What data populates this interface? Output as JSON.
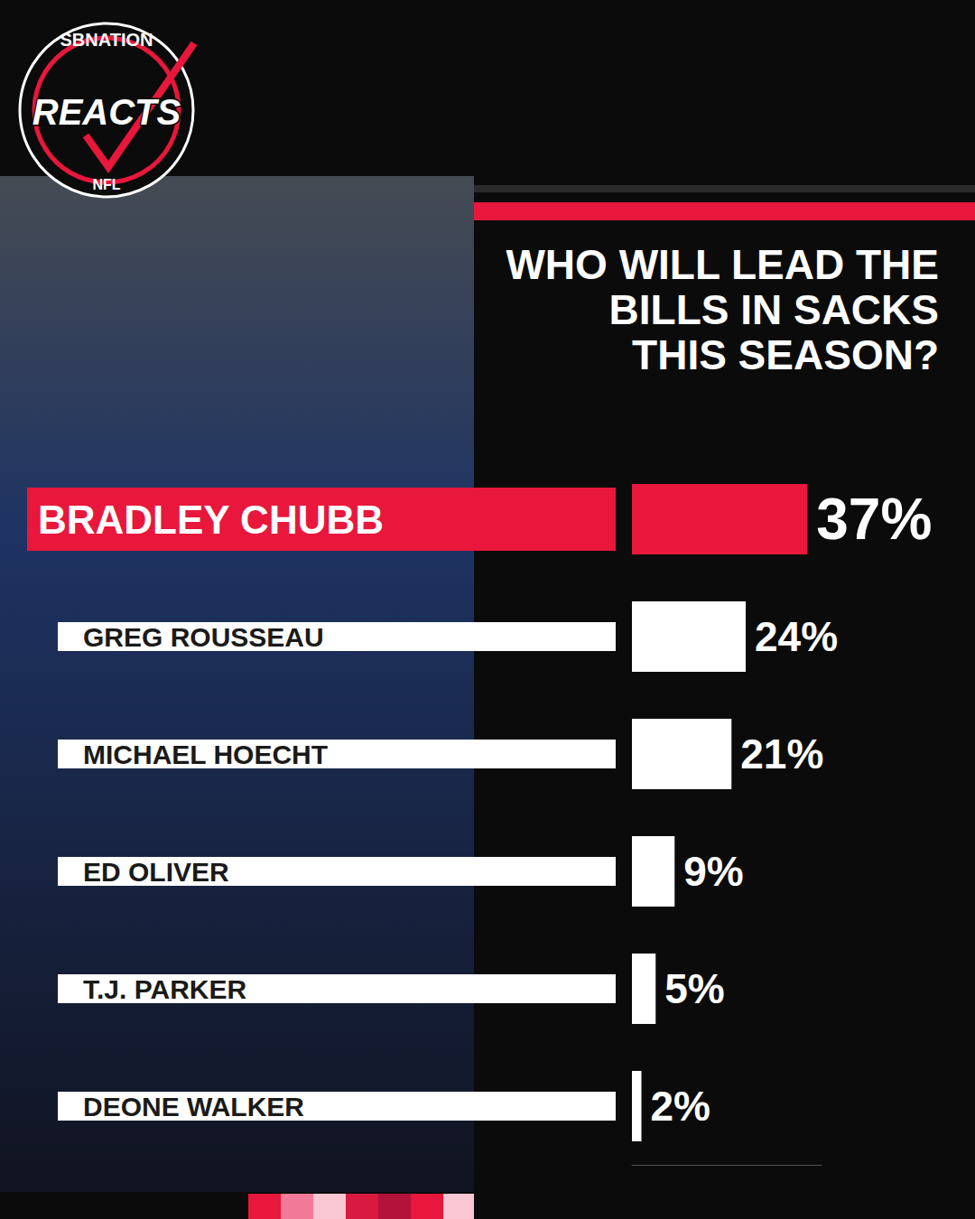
{
  "chart_data": {
    "type": "bar",
    "orientation": "horizontal",
    "title": "WHO WILL LEAD THE BILLS IN SACKS THIS SEASON?",
    "categories": [
      "BRADLEY CHUBB",
      "GREG ROUSSEAU",
      "MICHAEL HOECHT",
      "ED OLIVER",
      "T.J. PARKER",
      "DEONE WALKER"
    ],
    "values": [
      37,
      24,
      21,
      9,
      5,
      2
    ],
    "value_labels": [
      "37%",
      "24%",
      "21%",
      "9%",
      "5%",
      "2%"
    ],
    "colors": [
      "#e8173b",
      "#ffffff",
      "#ffffff",
      "#ffffff",
      "#ffffff",
      "#ffffff"
    ],
    "xlim": [
      0,
      40
    ],
    "data_labels": true,
    "tick_labels": "y",
    "grid": false
  },
  "logo": {
    "top": "SBNATION",
    "main": "REACTS",
    "bottom": "NFL"
  }
}
